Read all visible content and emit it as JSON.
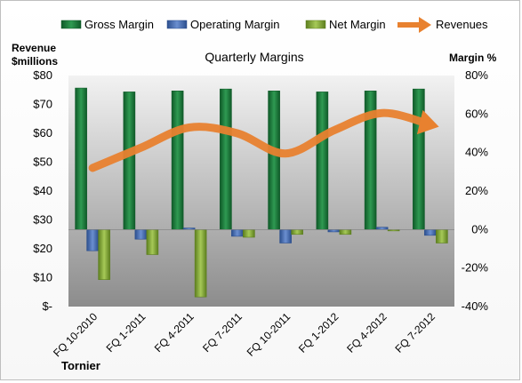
{
  "chart_data": {
    "type": "bar",
    "title": "Quarterly Margins",
    "company": "Tornier",
    "ylabel_left": [
      "Revenue",
      "$millions"
    ],
    "ylabel_right": "Margin %",
    "categories": [
      "FQ 10-2010",
      "FQ 1-2011",
      "FQ 4-2011",
      "FQ 7-2011",
      "FQ 10-2011",
      "FQ 1-2012",
      "FQ 4-2012",
      "FQ 7-2012"
    ],
    "y_left": {
      "min": 0,
      "max": 80,
      "step": 10,
      "tick_labels": [
        "$-",
        "$10",
        "$20",
        "$30",
        "$40",
        "$50",
        "$60",
        "$70",
        "$80"
      ]
    },
    "y_right": {
      "min": -40,
      "max": 80,
      "step": 20,
      "tick_labels": [
        "-40%",
        "-20%",
        "0%",
        "20%",
        "40%",
        "60%",
        "80%"
      ]
    },
    "legend_position": "top",
    "grid": false,
    "series": [
      {
        "name": "Gross Margin",
        "axis": "right",
        "type": "bar",
        "color": "#1e7a3c",
        "values": [
          73.5,
          71.5,
          72,
          73,
          72,
          71.5,
          72,
          73
        ]
      },
      {
        "name": "Operating Margin",
        "axis": "right",
        "type": "bar",
        "color": "#4a6fb0",
        "values": [
          -11,
          -5,
          0.8,
          -3.5,
          -7,
          -1.2,
          1.2,
          -3
        ]
      },
      {
        "name": "Net Margin",
        "axis": "right",
        "type": "bar",
        "color": "#8aae3a",
        "values": [
          -26,
          -13,
          -35,
          -4,
          -2.5,
          -2.5,
          -0.5,
          -7
        ]
      },
      {
        "name": "Revenues",
        "axis": "left",
        "type": "line",
        "color": "#e8812f",
        "values": [
          48,
          55,
          62,
          60,
          53,
          61,
          67,
          63
        ]
      }
    ]
  }
}
